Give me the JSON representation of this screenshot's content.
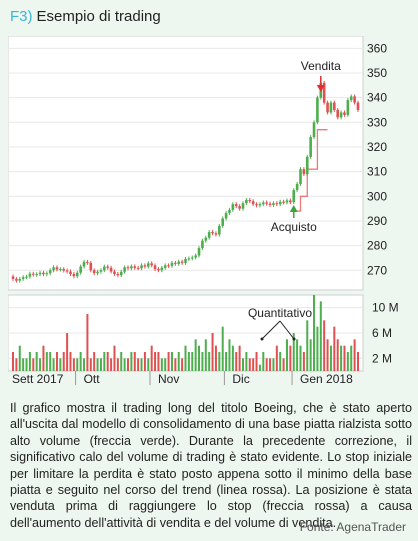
{
  "header": {
    "tag": "F3)",
    "title": "Esempio di trading"
  },
  "chart_data": {
    "type": "candlestick",
    "price_ticks": [
      270,
      280,
      290,
      300,
      310,
      320,
      330,
      340,
      350,
      360
    ],
    "ylim": [
      262,
      365
    ],
    "volume_ticks": [
      {
        "value": 2,
        "label": "2 M"
      },
      {
        "value": 6,
        "label": "6 M"
      },
      {
        "value": 10,
        "label": "10 M"
      }
    ],
    "volume_ylim": [
      0,
      12
    ],
    "months": [
      "Sett 2017",
      "Ott",
      "Nov",
      "Dic",
      "Gen 2018"
    ],
    "month_start_index": [
      0,
      19,
      41,
      63,
      83
    ],
    "annotations": {
      "sell": {
        "label": "Vendita",
        "index": 91
      },
      "buy": {
        "label": "Acquisto",
        "index": 83
      },
      "volume": {
        "label": "Quantitativo"
      }
    },
    "candles": [
      {
        "o": 267.5,
        "c": 266.5
      },
      {
        "o": 266.5,
        "c": 265.8
      },
      {
        "o": 265.8,
        "c": 266.5
      },
      {
        "o": 266.5,
        "c": 267.2
      },
      {
        "o": 267.2,
        "c": 267.4
      },
      {
        "o": 267.4,
        "c": 268.6
      },
      {
        "o": 268.6,
        "c": 268.2
      },
      {
        "o": 268.2,
        "c": 268.4
      },
      {
        "o": 268.4,
        "c": 269.0
      },
      {
        "o": 269.0,
        "c": 268.4
      },
      {
        "o": 268.4,
        "c": 268.8
      },
      {
        "o": 268.8,
        "c": 270.0
      },
      {
        "o": 270.0,
        "c": 271.2
      },
      {
        "o": 271.2,
        "c": 270.3
      },
      {
        "o": 270.3,
        "c": 270.5
      },
      {
        "o": 270.5,
        "c": 269.9
      },
      {
        "o": 269.9,
        "c": 269.5
      },
      {
        "o": 269.5,
        "c": 268.5
      },
      {
        "o": 268.5,
        "c": 267.6
      },
      {
        "o": 267.6,
        "c": 269.0
      },
      {
        "o": 269.0,
        "c": 271.5
      },
      {
        "o": 271.5,
        "c": 273.4
      },
      {
        "o": 273.4,
        "c": 273.0
      },
      {
        "o": 273.0,
        "c": 270.0
      },
      {
        "o": 270.0,
        "c": 268.8
      },
      {
        "o": 268.8,
        "c": 269.4
      },
      {
        "o": 269.4,
        "c": 270.0
      },
      {
        "o": 270.0,
        "c": 271.5
      },
      {
        "o": 271.5,
        "c": 271.0
      },
      {
        "o": 271.0,
        "c": 269.5
      },
      {
        "o": 269.5,
        "c": 268.5
      },
      {
        "o": 268.5,
        "c": 268.0
      },
      {
        "o": 268.0,
        "c": 269.4
      },
      {
        "o": 269.4,
        "c": 271.2
      },
      {
        "o": 271.2,
        "c": 270.8
      },
      {
        "o": 270.8,
        "c": 271.6
      },
      {
        "o": 271.6,
        "c": 271.0
      },
      {
        "o": 271.0,
        "c": 270.8
      },
      {
        "o": 270.8,
        "c": 272.0
      },
      {
        "o": 272.0,
        "c": 271.5
      },
      {
        "o": 271.5,
        "c": 272.8
      },
      {
        "o": 272.8,
        "c": 272.0
      },
      {
        "o": 272.0,
        "c": 270.5
      },
      {
        "o": 270.5,
        "c": 270.0
      },
      {
        "o": 270.0,
        "c": 271.0
      },
      {
        "o": 271.0,
        "c": 272.0
      },
      {
        "o": 272.0,
        "c": 271.8
      },
      {
        "o": 271.8,
        "c": 273.0
      },
      {
        "o": 273.0,
        "c": 272.6
      },
      {
        "o": 272.6,
        "c": 273.5
      },
      {
        "o": 273.5,
        "c": 273.0
      },
      {
        "o": 273.0,
        "c": 274.6
      },
      {
        "o": 274.6,
        "c": 274.8
      },
      {
        "o": 274.8,
        "c": 275.2
      },
      {
        "o": 275.2,
        "c": 276.0
      },
      {
        "o": 276.0,
        "c": 279.0
      },
      {
        "o": 279.0,
        "c": 282.0
      },
      {
        "o": 282.0,
        "c": 283.2
      },
      {
        "o": 283.2,
        "c": 285.5
      },
      {
        "o": 285.5,
        "c": 285.0
      },
      {
        "o": 285.0,
        "c": 284.5
      },
      {
        "o": 284.5,
        "c": 288.0
      },
      {
        "o": 288.0,
        "c": 291.0
      },
      {
        "o": 291.0,
        "c": 293.2
      },
      {
        "o": 293.2,
        "c": 294.5
      },
      {
        "o": 294.5,
        "c": 296.8
      },
      {
        "o": 296.8,
        "c": 296.0
      },
      {
        "o": 296.0,
        "c": 295.0
      },
      {
        "o": 295.0,
        "c": 297.2
      },
      {
        "o": 297.2,
        "c": 298.5
      },
      {
        "o": 298.5,
        "c": 298.0
      },
      {
        "o": 298.0,
        "c": 296.8
      },
      {
        "o": 296.8,
        "c": 296.3
      },
      {
        "o": 296.3,
        "c": 296.8
      },
      {
        "o": 296.8,
        "c": 297.5
      },
      {
        "o": 297.5,
        "c": 297.0
      },
      {
        "o": 297.0,
        "c": 296.5
      },
      {
        "o": 296.5,
        "c": 297.2
      },
      {
        "o": 297.2,
        "c": 296.8
      },
      {
        "o": 296.8,
        "c": 297.8
      },
      {
        "o": 297.8,
        "c": 297.5
      },
      {
        "o": 297.5,
        "c": 298.3
      },
      {
        "o": 298.3,
        "c": 297.6
      },
      {
        "o": 297.6,
        "c": 302.5
      },
      {
        "o": 302.5,
        "c": 305.0
      },
      {
        "o": 305.0,
        "c": 311.0
      },
      {
        "o": 311.0,
        "c": 309.0
      },
      {
        "o": 309.0,
        "c": 316.0
      },
      {
        "o": 316.0,
        "c": 324.0
      },
      {
        "o": 324.0,
        "c": 330.0
      },
      {
        "o": 330.0,
        "c": 340.0
      },
      {
        "o": 340.0,
        "c": 346.0
      },
      {
        "o": 346.0,
        "c": 338.0
      },
      {
        "o": 338.0,
        "c": 334.0
      },
      {
        "o": 334.0,
        "c": 338.0
      },
      {
        "o": 338.0,
        "c": 335.0
      },
      {
        "o": 335.0,
        "c": 332.0
      },
      {
        "o": 332.0,
        "c": 334.0
      },
      {
        "o": 334.0,
        "c": 333.0
      },
      {
        "o": 333.0,
        "c": 339.0
      },
      {
        "o": 339.0,
        "c": 340.5
      },
      {
        "o": 340.5,
        "c": 338.0
      },
      {
        "o": 338.0,
        "c": 335.0
      }
    ],
    "volume": [
      3,
      2,
      4,
      2,
      2,
      3,
      2,
      3,
      2,
      4,
      3,
      3,
      2,
      3,
      2,
      3,
      6,
      3,
      2,
      2,
      3,
      2,
      9,
      2,
      3,
      2,
      2,
      3,
      3,
      2,
      4,
      2,
      3,
      2,
      2,
      3,
      3,
      2,
      2,
      3,
      2,
      4,
      3,
      3,
      2,
      2,
      3,
      3,
      2,
      3,
      2,
      4,
      3,
      3,
      5,
      4,
      3,
      5,
      3,
      6,
      4,
      3,
      7,
      3,
      5,
      4,
      3,
      4,
      2,
      3,
      2,
      2,
      3,
      1,
      3,
      2,
      2,
      2,
      4,
      3,
      2,
      5,
      4,
      6,
      5,
      4,
      3,
      8,
      5,
      12,
      7,
      11,
      8,
      5,
      4,
      7,
      5,
      4,
      4,
      3,
      4,
      5,
      3
    ],
    "stop_line": [
      {
        "i": 83,
        "v": 294
      },
      {
        "i": 85,
        "v": 294
      },
      {
        "i": 85,
        "v": 300
      },
      {
        "i": 87,
        "v": 300
      },
      {
        "i": 87,
        "v": 311
      },
      {
        "i": 90,
        "v": 311
      },
      {
        "i": 90,
        "v": 327
      },
      {
        "i": 93,
        "v": 327
      }
    ]
  },
  "colors": {
    "up": "#4cae4c",
    "down": "#e05050",
    "stop": "#f07878",
    "grid": "#e8e8e8"
  },
  "caption": "Il grafico mostra il trading long del titolo Boeing, che è stato aperto all'uscita dal modello di consolidamento di una base piatta rialzista sotto alto volume (freccia verde). Durante la precedente correzione, il significativo calo del volume di trading è stato evidente. Lo stop iniziale per limitare la perdita è stato posto appena sotto il minimo della base piatta e seguito nel corso del trend (linea rossa). La posizione è stata venduta prima di raggiungere lo stop (freccia rossa) a causa dell'aumento dell'attività di vendita e del volume di vendita.",
  "source": "Fonte: AgenaTrader"
}
